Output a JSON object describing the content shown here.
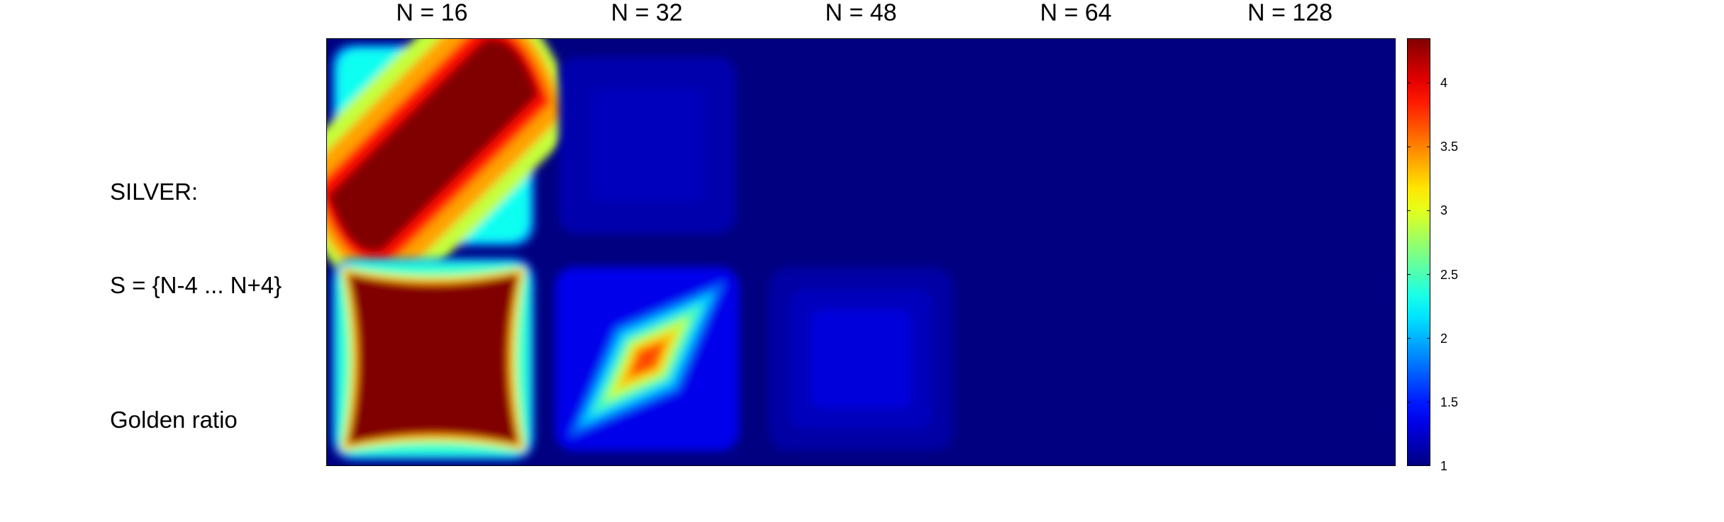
{
  "chart_data": {
    "type": "heatmap",
    "columns": [
      "N = 16",
      "N = 32",
      "N = 48",
      "N = 64",
      "N = 128"
    ],
    "rows": [
      {
        "label_line1": "SILVER:",
        "label_line2": "S = {N-4 ... N+4}"
      },
      {
        "label_line1": "Golden ratio",
        "label_line2": ""
      }
    ],
    "colorbar": {
      "colormap": "jet",
      "min": 1,
      "max": 4.35,
      "ticks": [
        "1",
        "1.5",
        "2",
        "2.5",
        "3",
        "3.5",
        "4"
      ]
    },
    "panels": [
      {
        "row": 0,
        "col": 0,
        "pattern": "diagonal-band",
        "peak": 4.35,
        "shape": "tilted ridge from bottom-left to top-right, saturated"
      },
      {
        "row": 0,
        "col": 1,
        "pattern": "blob",
        "peak": 1.2
      },
      {
        "row": 0,
        "col": 2,
        "pattern": "flat",
        "peak": 1.0
      },
      {
        "row": 0,
        "col": 3,
        "pattern": "flat",
        "peak": 1.0
      },
      {
        "row": 0,
        "col": 4,
        "pattern": "flat",
        "peak": 1.0
      },
      {
        "row": 1,
        "col": 0,
        "pattern": "square",
        "peak": 4.35,
        "shape": "saturated rounded square"
      },
      {
        "row": 1,
        "col": 1,
        "pattern": "diamond",
        "peak": 3.7,
        "shape": "tilted diamond with hot centre"
      },
      {
        "row": 1,
        "col": 2,
        "pattern": "square-faint",
        "peak": 1.3
      },
      {
        "row": 1,
        "col": 3,
        "pattern": "flat",
        "peak": 1.0
      },
      {
        "row": 1,
        "col": 4,
        "pattern": "flat",
        "peak": 1.0
      }
    ]
  }
}
